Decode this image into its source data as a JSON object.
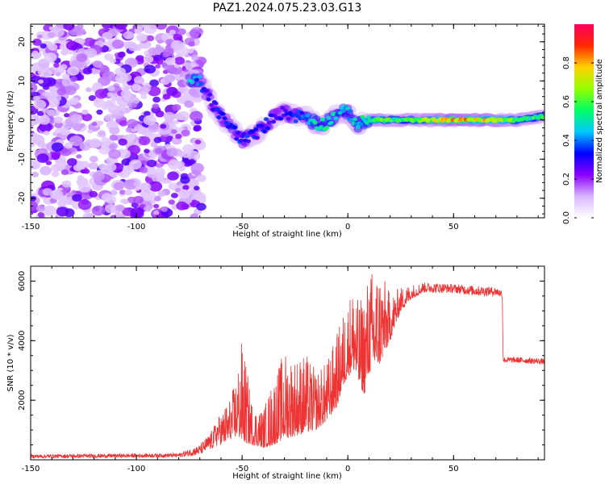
{
  "figure_title": "PAZ1.2024.075.23.03.G13",
  "chart_data": [
    {
      "type": "heatmap",
      "title": "",
      "xlabel": "Height of straight line (km)",
      "ylabel": "Frequency (Hz)",
      "xlim": [
        -150,
        93
      ],
      "ylim": [
        -25,
        24.5
      ],
      "xticks": [
        -150,
        -100,
        -50,
        0,
        50
      ],
      "yticks": [
        -20,
        -10,
        0,
        10,
        20
      ],
      "colorbar": {
        "label": "Normalized spectral amplitude",
        "range": [
          0,
          1
        ],
        "ticks": [
          "0.0",
          "0.2",
          "0.4",
          "0.6",
          "0.8"
        ],
        "tick_values": [
          0.0,
          0.2,
          0.4,
          0.6,
          0.8
        ],
        "colors": [
          "#ffffff",
          "#d9b6ff",
          "#8a00ff",
          "#0000ff",
          "#00c8ff",
          "#00ff64",
          "#96ff00",
          "#ffd200",
          "#ff2800",
          "#ff0060"
        ]
      },
      "ridge": {
        "x": [
          -75,
          -70,
          -65,
          -60,
          -55,
          -50,
          -45,
          -40,
          -35,
          -30,
          -25,
          -20,
          -15,
          -10,
          -5,
          0,
          5,
          10,
          15,
          20,
          30,
          40,
          50,
          60,
          70,
          80,
          93
        ],
        "y": [
          10,
          10,
          5,
          1,
          -2,
          -5,
          -4,
          -2,
          1,
          2,
          1,
          1,
          -1,
          -1,
          2,
          2,
          -1,
          0,
          0,
          0,
          0,
          0,
          0,
          0,
          0,
          0,
          1
        ],
        "amplitude": [
          0.45,
          0.4,
          0.3,
          0.35,
          0.35,
          0.35,
          0.35,
          0.35,
          0.3,
          0.3,
          0.35,
          0.4,
          0.5,
          0.55,
          0.45,
          0.45,
          0.5,
          0.55,
          0.7,
          0.6,
          0.6,
          0.7,
          0.85,
          0.8,
          0.75,
          0.6,
          0.55
        ]
      },
      "noise_region_x": [
        -150,
        -73
      ]
    },
    {
      "type": "line",
      "title": "",
      "xlabel": "Height of straight line (km)",
      "ylabel": "SNR (10 * v/v)",
      "xlim": [
        -150,
        93
      ],
      "ylim": [
        0,
        6500
      ],
      "xticks": [
        -150,
        -100,
        -50,
        0,
        50
      ],
      "yticks": [
        2000,
        4000,
        6000
      ],
      "color": "#ee3333",
      "envelope": {
        "x": [
          -150,
          -80,
          -70,
          -65,
          -60,
          -55,
          -52,
          -50,
          -45,
          -40,
          -35,
          -30,
          -25,
          -20,
          -15,
          -10,
          -5,
          -3,
          0,
          3,
          5,
          8,
          10,
          15,
          20,
          25,
          30,
          35,
          40,
          50,
          60,
          70,
          73,
          73.5,
          80,
          93
        ],
        "lo": [
          50,
          80,
          150,
          300,
          500,
          700,
          800,
          600,
          500,
          400,
          500,
          700,
          800,
          900,
          1000,
          1300,
          1800,
          2300,
          2800,
          3000,
          2500,
          2200,
          2900,
          3200,
          4000,
          5000,
          5400,
          5600,
          5600,
          5600,
          5500,
          5500,
          5450,
          3250,
          3250,
          3200
        ],
        "hi": [
          180,
          220,
          500,
          900,
          1600,
          2200,
          3100,
          4100,
          1800,
          1700,
          2800,
          3700,
          3500,
          3600,
          3000,
          3300,
          4300,
          4800,
          5400,
          6000,
          5300,
          5700,
          6400,
          6500,
          5600,
          5800,
          5900,
          5950,
          5950,
          5900,
          5850,
          5800,
          5700,
          3450,
          3450,
          3400
        ]
      }
    }
  ]
}
